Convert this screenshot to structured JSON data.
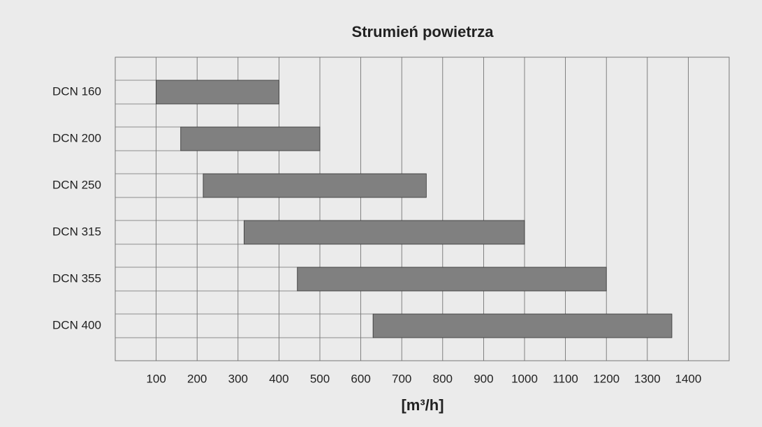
{
  "chart_data": {
    "type": "range_bar",
    "title": "Strumień powietrza",
    "x_label": "[m³/h]",
    "categories": [
      "DCN 160",
      "DCN 200",
      "DCN 250",
      "DCN 315",
      "DCN 355",
      "DCN 400"
    ],
    "starts": [
      100,
      160,
      215,
      315,
      445,
      630
    ],
    "ends": [
      400,
      500,
      760,
      1000,
      1200,
      1360
    ],
    "color": "#808080",
    "xlim": [
      0,
      1500
    ],
    "xticks": [
      100,
      200,
      300,
      400,
      500,
      600,
      700,
      800,
      900,
      1000,
      1100,
      1200,
      1300,
      1400
    ],
    "grid": true
  }
}
